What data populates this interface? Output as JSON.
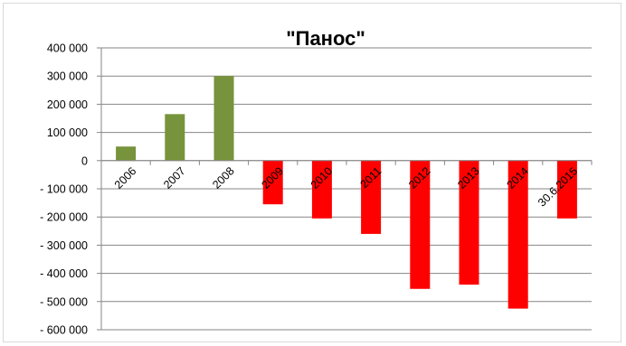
{
  "chart_data": {
    "type": "bar",
    "title": "\"Панос\"",
    "xlabel": "",
    "ylabel": "",
    "categories": [
      "2006",
      "2007",
      "2008",
      "2009",
      "2010",
      "2011",
      "2012",
      "2013",
      "2014",
      "30.6.2015"
    ],
    "values": [
      50000,
      165000,
      300000,
      -155000,
      -205000,
      -260000,
      -455000,
      -440000,
      -525000,
      -205000
    ],
    "ylim": [
      -600000,
      400000
    ],
    "yticks": [
      400000,
      300000,
      200000,
      100000,
      0,
      -100000,
      -200000,
      -300000,
      -400000,
      -500000,
      -600000
    ],
    "ytick_labels": [
      "400 000",
      "300 000",
      "200 000",
      "100 000",
      "0",
      "- 100 000",
      "- 200 000",
      "- 300 000",
      "- 400 000",
      "- 500 000",
      "- 600 000"
    ],
    "grid": true,
    "legend": "none",
    "colors": {
      "positive": "#77933c",
      "negative": "#ff0000",
      "grid": "#868686",
      "axis": "#868686"
    }
  }
}
